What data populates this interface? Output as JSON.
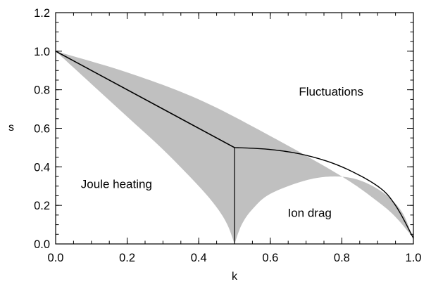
{
  "chart_data": {
    "type": "area",
    "title": "",
    "xlabel": "k",
    "ylabel": "s",
    "xlim": [
      0.0,
      1.0
    ],
    "ylim": [
      0.0,
      1.2
    ],
    "grid": false,
    "x_ticks": [
      0.0,
      0.2,
      0.4,
      0.6,
      0.8,
      1.0
    ],
    "x_tick_labels": [
      "0.0",
      "0.2",
      "0.4",
      "0.6",
      "0.8",
      "1.0"
    ],
    "y_ticks": [
      0.0,
      0.2,
      0.4,
      0.6,
      0.8,
      1.0,
      1.2
    ],
    "y_tick_labels": [
      "0.0",
      "0.2",
      "0.4",
      "0.6",
      "0.8",
      "1.0",
      "1.2"
    ],
    "annotations": [
      {
        "text": "Fluctuations",
        "k": 0.77,
        "s": 0.77
      },
      {
        "text": "Joule heating",
        "k": 0.17,
        "s": 0.29
      },
      {
        "text": "Ion drag",
        "k": 0.71,
        "s": 0.14
      }
    ],
    "shaded_region": {
      "color": "#c0c0c0",
      "upper_boundary": {
        "k": [
          0.0,
          0.2,
          0.4,
          0.6,
          0.8,
          0.9,
          0.95,
          1.0
        ],
        "s": [
          1.0,
          0.89,
          0.75,
          0.56,
          0.35,
          0.22,
          0.14,
          0.03
        ]
      },
      "lower_left_boundary": {
        "k": [
          0.0,
          0.1,
          0.2,
          0.3,
          0.4,
          0.45,
          0.48,
          0.5
        ],
        "s": [
          1.0,
          0.83,
          0.66,
          0.49,
          0.3,
          0.19,
          0.1,
          0.0
        ]
      },
      "lower_right_boundary": {
        "k": [
          0.5,
          0.52,
          0.55,
          0.6,
          0.7,
          0.78,
          0.85,
          0.92,
          0.97,
          1.0
        ],
        "s": [
          0.0,
          0.1,
          0.18,
          0.26,
          0.33,
          0.35,
          0.33,
          0.26,
          0.16,
          0.02
        ]
      }
    },
    "line": {
      "color": "#000000",
      "k": [
        0.0,
        0.5,
        0.5,
        0.6,
        0.7,
        0.8,
        0.9,
        0.95,
        1.0
      ],
      "s": [
        1.0,
        0.5,
        0.5,
        0.49,
        0.46,
        0.4,
        0.3,
        0.2,
        0.03
      ]
    },
    "vertical_line": {
      "k": 0.5,
      "s_from": 0.0,
      "s_to": 0.5,
      "color": "#000000"
    }
  }
}
